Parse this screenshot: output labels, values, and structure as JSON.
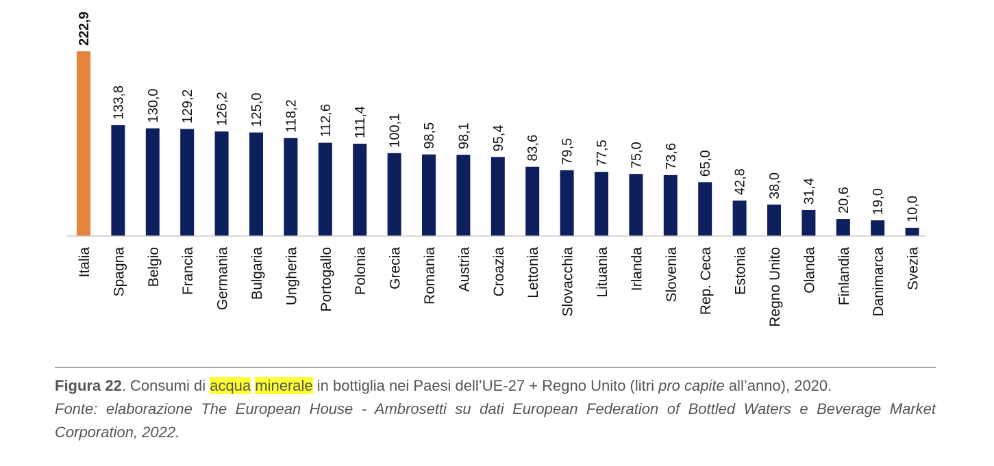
{
  "chart_data": {
    "type": "bar",
    "categories": [
      "Italia",
      "Spagna",
      "Belgio",
      "Francia",
      "Germania",
      "Bulgaria",
      "Ungheria",
      "Portogallo",
      "Polonia",
      "Grecia",
      "Romania",
      "Austria",
      "Croazia",
      "Lettonia",
      "Slovacchia",
      "Lituania",
      "Irlanda",
      "Slovenia",
      "Rep. Ceca",
      "Estonia",
      "Regno Unito",
      "Olanda",
      "Finlandia",
      "Danimarca",
      "Svezia"
    ],
    "values": [
      222.9,
      133.8,
      130.0,
      129.2,
      126.2,
      125.0,
      118.2,
      112.6,
      111.4,
      100.1,
      98.5,
      98.1,
      95.4,
      83.6,
      79.5,
      77.5,
      75.0,
      73.6,
      65.0,
      42.8,
      38.0,
      31.4,
      20.6,
      19.0,
      10.0
    ],
    "value_labels": [
      "222,9",
      "133,8",
      "130,0",
      "129,2",
      "126,2",
      "125,0",
      "118,2",
      "112,6",
      "111,4",
      "100,1",
      "98,5",
      "98,1",
      "95,4",
      "83,6",
      "79,5",
      "77,5",
      "75,0",
      "73,6",
      "65,0",
      "42,8",
      "38,0",
      "31,4",
      "20,6",
      "19,0",
      "10,0"
    ],
    "highlight_index": 0,
    "colors": {
      "default": "#0d1f5c",
      "highlight": "#e6843c"
    },
    "axis": false,
    "grid": false,
    "legend": "none",
    "title": "",
    "xlabel": "",
    "ylabel": ""
  },
  "caption": {
    "figure_number": "Figura 22",
    "text_1": ". Consumi di ",
    "highlight_1": "acqua",
    "text_2": " ",
    "highlight_2": "minerale",
    "text_3": " in bottiglia nei Paesi dell’UE-27 + Regno Unito (litri ",
    "text_italic": "pro capite",
    "text_4": " all’anno), 2020.",
    "source": "Fonte: elaborazione The European House - Ambrosetti su dati European Federation of Bottled Waters e Beverage Market Corporation, 2022."
  }
}
